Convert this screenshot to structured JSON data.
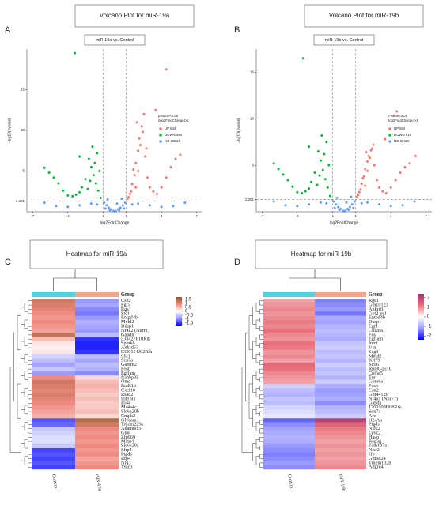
{
  "chart_data": [
    {
      "type": "volcano",
      "panel": "A",
      "title": "Volcano Plot for miR-19a",
      "subtitle": "miR-19a vs. Control",
      "x_label": "log2FoldChange",
      "y_label": "-log10(pvalue)",
      "xlim": [
        -7.5,
        7.5
      ],
      "ylim": [
        0,
        20
      ],
      "xticks": [
        -7,
        -4,
        -1,
        1,
        4,
        7
      ],
      "yticks": [
        1.301,
        5,
        10,
        15
      ],
      "vlines": [
        -1,
        1
      ],
      "hline": 1.301,
      "legend_title": [
        "p-value<0.05",
        "|log2FoldChange|>1"
      ],
      "series": [
        {
          "name": "UP",
          "count": 634,
          "color": "#f8766d",
          "x": [
            1.2,
            1.4,
            1.5,
            1.7,
            1.8,
            2.0,
            2.1,
            2.3,
            2.5,
            2.2,
            1.6,
            1.9,
            2.6,
            2.8,
            3.0,
            3.3,
            3.6,
            4.0,
            4.4,
            4.8,
            5.2,
            5.6,
            2.4,
            1.3,
            1.1,
            3.5,
            4.4,
            1.8,
            2.0,
            2.7
          ],
          "y": [
            1.8,
            2.5,
            3.4,
            4.5,
            6.0,
            7.5,
            9.0,
            10.5,
            12.0,
            8.2,
            5.2,
            11.0,
            6.8,
            4.2,
            3.0,
            2.5,
            2.2,
            3.0,
            4.2,
            5.5,
            6.5,
            7.0,
            9.8,
            2.2,
            1.6,
            12.5,
            17.5,
            3.0,
            5.0,
            7.8
          ]
        },
        {
          "name": "DOWN",
          "count": 493,
          "color": "#00ba38",
          "x": [
            -1.2,
            -1.4,
            -1.6,
            -1.8,
            -2.0,
            -2.2,
            -1.5,
            -1.9,
            -2.5,
            -2.8,
            -3.0,
            -3.3,
            -3.6,
            -4.0,
            -4.4,
            -4.8,
            -5.2,
            -5.6,
            -6.0,
            -1.3,
            -2.3,
            -3.4,
            -1.7,
            -2.1,
            -3.0
          ],
          "y": [
            1.7,
            2.6,
            3.5,
            4.5,
            5.5,
            6.5,
            7.2,
            8.0,
            4.0,
            3.0,
            2.4,
            2.1,
            1.9,
            2.0,
            2.6,
            3.5,
            4.2,
            4.8,
            5.4,
            5.0,
            2.8,
            19.5,
            6.0,
            3.8,
            6.8
          ]
        },
        {
          "name": "NO",
          "count": 20534,
          "color": "#619cff",
          "x": [
            -0.9,
            -0.7,
            -0.5,
            -0.3,
            -0.1,
            0.1,
            0.3,
            0.5,
            0.7,
            0.9,
            -0.8,
            -0.4,
            0,
            0.4,
            0.8,
            -2,
            -3,
            -4,
            -5,
            -6,
            2,
            3,
            4,
            5,
            6,
            -1.5,
            1.5,
            -0.6,
            0.6,
            0.2
          ],
          "y": [
            1.1,
            0.8,
            0.5,
            0.3,
            0.1,
            0.1,
            0.3,
            0.5,
            0.8,
            1.1,
            0.4,
            0.2,
            0.05,
            0.2,
            0.4,
            1.0,
            0.8,
            0.6,
            0.7,
            1.1,
            1.0,
            0.8,
            0.6,
            0.7,
            1.1,
            0.9,
            0.9,
            1.5,
            1.6,
            1.0
          ]
        }
      ]
    },
    {
      "type": "volcano",
      "panel": "B",
      "title": "Volcano Plot for miR-19b",
      "subtitle": "miR-19b vs. Control",
      "x_label": "log2FoldChange",
      "y_label": "-log10(pvalue)",
      "xlim": [
        -7.5,
        7.5
      ],
      "ylim": [
        0,
        17.5
      ],
      "xticks": [
        -7,
        -4,
        -1,
        1,
        4,
        7
      ],
      "yticks": [
        1.301,
        5,
        10,
        15
      ],
      "vlines": [
        -1,
        1
      ],
      "hline": 1.301,
      "legend_title": [
        "p-value<0.05",
        "|log2FoldChange|>1"
      ],
      "series": [
        {
          "name": "UP",
          "count": 562,
          "color": "#f8766d",
          "x": [
            1.2,
            1.4,
            1.5,
            1.7,
            1.8,
            2.0,
            2.1,
            2.3,
            2.5,
            2.2,
            1.6,
            1.9,
            2.6,
            2.8,
            3.0,
            3.3,
            3.6,
            4.0,
            4.4,
            4.8,
            5.2,
            5.6,
            2.4,
            1.3,
            1.1,
            3.5,
            4.5,
            1.8,
            2.0,
            6.1
          ],
          "y": [
            1.8,
            2.4,
            3.0,
            3.8,
            4.6,
            5.4,
            6.0,
            6.6,
            7.2,
            5.8,
            3.6,
            6.4,
            5.0,
            3.4,
            2.6,
            2.2,
            2.0,
            2.6,
            3.4,
            4.2,
            4.8,
            5.2,
            6.8,
            2.1,
            1.6,
            7.8,
            10.8,
            2.8,
            4.4,
            6.0
          ]
        },
        {
          "name": "DOWN",
          "count": 615,
          "color": "#00ba38",
          "x": [
            -1.2,
            -1.4,
            -1.6,
            -1.8,
            -2.0,
            -2.2,
            -1.5,
            -1.9,
            -2.5,
            -2.8,
            -3.0,
            -3.3,
            -3.6,
            -4.0,
            -4.4,
            -4.8,
            -5.2,
            -5.6,
            -6.0,
            -1.3,
            -2.3,
            -3.5,
            -1.7,
            -2.1,
            -3.0
          ],
          "y": [
            1.7,
            2.6,
            3.5,
            4.5,
            5.5,
            6.5,
            7.5,
            8.2,
            4.2,
            3.2,
            2.5,
            2.2,
            2.0,
            2.1,
            2.7,
            3.4,
            4.0,
            4.6,
            5.2,
            5.0,
            2.9,
            16.5,
            6.2,
            3.9,
            7.0
          ]
        },
        {
          "name": "NO",
          "count": 20426,
          "color": "#619cff",
          "x": [
            -0.9,
            -0.7,
            -0.5,
            -0.3,
            -0.1,
            0.1,
            0.3,
            0.5,
            0.7,
            0.9,
            -0.8,
            -0.4,
            0,
            0.4,
            0.8,
            -2,
            -3,
            -4,
            -5,
            -6,
            2,
            3,
            4,
            5,
            6,
            -1.5,
            1.5,
            -0.6,
            0.6,
            0.2
          ],
          "y": [
            1.1,
            0.8,
            0.5,
            0.3,
            0.1,
            0.1,
            0.3,
            0.5,
            0.8,
            1.1,
            0.4,
            0.2,
            0.05,
            0.2,
            0.4,
            1.0,
            0.8,
            0.6,
            0.7,
            1.1,
            1.0,
            0.8,
            0.6,
            0.7,
            1.1,
            0.9,
            0.9,
            1.5,
            1.6,
            1.0
          ]
        }
      ]
    },
    {
      "type": "heatmap",
      "panel": "C",
      "title": "Heatmap for miR-19a",
      "legend_title": "Group",
      "columns": [
        "Control",
        "miR-19a"
      ],
      "group_colors": [
        "#52d0de",
        "#f2a58a"
      ],
      "zlim": [
        -1.8,
        1.8
      ],
      "zticks": [
        1.5,
        1,
        0.5,
        0,
        -0.5,
        -1,
        -1.5
      ],
      "colors": [
        "#0000ff",
        "#9a9aff",
        "#ffffff",
        "#f08a80",
        "#8b5a2b"
      ],
      "rows": [
        "Csn2",
        "Fgf5",
        "Rgs1",
        "Stc1",
        "Entpd4b",
        "Mybl2",
        "Dusp1",
        "Nr4a2 (Nurr1)",
        "Gapdh",
        "533427F10Rik",
        "Spink8",
        "Ankrd63",
        "9330154J02Rik",
        "Slit1",
        "Scn7a",
        "Garem2",
        "Fosb",
        "Egflam",
        "Ranbp3l",
        "Omd",
        "Rad51b",
        "Cxcl10",
        "Rsad2",
        "Ifit1bl1",
        "Ifi44",
        "Ms4a4c",
        "Slc6a20b",
        "Cmpk2",
        "Glycam1",
        "Tmem229a",
        "Adamts15",
        "Gjb6",
        "Zfp969",
        "Matn4",
        "Slc6a20a",
        "Sfrp4",
        "Ptgds",
        "Rtp4",
        "Nrg3",
        "Tmc3"
      ],
      "values": [
        [
          1.2,
          -0.9
        ],
        [
          1.1,
          -0.8
        ],
        [
          1.0,
          -1.0
        ],
        [
          0.9,
          -1.1
        ],
        [
          0.8,
          -0.9
        ],
        [
          0.9,
          -0.7
        ],
        [
          0.8,
          -0.8
        ],
        [
          0.7,
          -0.9
        ],
        [
          1.3,
          -0.6
        ],
        [
          0.5,
          -1.5
        ],
        [
          0.2,
          -1.6
        ],
        [
          0.1,
          -1.6
        ],
        [
          0.2,
          -1.5
        ],
        [
          -0.4,
          -0.6
        ],
        [
          -0.6,
          -0.8
        ],
        [
          -0.8,
          -0.6
        ],
        [
          -0.5,
          -0.7
        ],
        [
          -0.9,
          -1.0
        ],
        [
          0.9,
          0.3
        ],
        [
          1.2,
          0.5
        ],
        [
          1.1,
          0.6
        ],
        [
          1.0,
          0.5
        ],
        [
          1.1,
          0.4
        ],
        [
          1.0,
          0.5
        ],
        [
          0.9,
          0.4
        ],
        [
          0.8,
          0.4
        ],
        [
          0.7,
          0.5
        ],
        [
          0.6,
          0.3
        ],
        [
          -1.3,
          1.4
        ],
        [
          -1.2,
          1.2
        ],
        [
          -0.5,
          0.9
        ],
        [
          -0.4,
          0.8
        ],
        [
          -0.3,
          0.9
        ],
        [
          -0.3,
          0.8
        ],
        [
          -0.5,
          0.9
        ],
        [
          -1.4,
          0.8
        ],
        [
          -1.3,
          0.9
        ],
        [
          -1.4,
          0.7
        ],
        [
          -1.3,
          0.8
        ],
        [
          -1.4,
          0.9
        ]
      ]
    },
    {
      "type": "heatmap",
      "panel": "D",
      "title": "Heatmap for miR-19b",
      "legend_title": "Group",
      "columns": [
        "Control",
        "miR-19b"
      ],
      "group_colors": [
        "#52d0de",
        "#f2a58a"
      ],
      "zlim": [
        -2.4,
        2.4
      ],
      "zticks": [
        2,
        1,
        0,
        -1,
        -2
      ],
      "colors": [
        "#0000ff",
        "#9a9aff",
        "#ffffff",
        "#e8707a",
        "#a0306f"
      ],
      "rows": [
        "Rgs1",
        "Gm10123",
        "Ankrd1",
        "Got2-ps1",
        "Entpd4b",
        "Dusp1",
        "Egr1",
        "Col28a1",
        "Fos",
        "Egflam",
        "Inmt",
        "Vtn",
        "Scg3",
        "Mmd2",
        "Krt79",
        "Stra6",
        "Rpl30-ps10",
        "Col6a5",
        "Tnr",
        "Gpm6a",
        "Fosb",
        "Csn2",
        "Gm44126",
        "Nr4a1 (Nur77)",
        "Gapdh",
        "1700109H08Rik",
        "Scn7a",
        "Arc",
        "H2-Aa",
        "Ptgds",
        "Ntrk2",
        "Ly6c2",
        "Haao",
        "Reg3g",
        "Fam107a",
        "Ntsr2",
        "Hp",
        "Gm9824",
        "Tmem132b",
        "Adgre4"
      ],
      "values": [
        [
          0.8,
          -1.4
        ],
        [
          0.9,
          -1.3
        ],
        [
          1.0,
          -1.2
        ],
        [
          0.9,
          -1.5
        ],
        [
          1.0,
          -1.0
        ],
        [
          1.1,
          -1.1
        ],
        [
          1.0,
          -0.9
        ],
        [
          1.2,
          -0.8
        ],
        [
          1.0,
          -0.9
        ],
        [
          0.9,
          -1.0
        ],
        [
          1.2,
          -0.7
        ],
        [
          1.1,
          -0.6
        ],
        [
          0.9,
          -0.8
        ],
        [
          1.0,
          -0.7
        ],
        [
          0.8,
          -0.9
        ],
        [
          1.3,
          -0.6
        ],
        [
          1.2,
          -0.8
        ],
        [
          1.0,
          -0.7
        ],
        [
          0.9,
          -0.9
        ],
        [
          0.8,
          -0.6
        ],
        [
          -0.6,
          -1.0
        ],
        [
          -0.8,
          -1.2
        ],
        [
          -0.9,
          -1.1
        ],
        [
          -0.7,
          -1.0
        ],
        [
          -0.8,
          -1.3
        ],
        [
          -0.5,
          -0.9
        ],
        [
          -0.4,
          -0.8
        ],
        [
          -0.3,
          -0.6
        ],
        [
          -1.6,
          2.0
        ],
        [
          -1.3,
          1.4
        ],
        [
          -1.1,
          1.1
        ],
        [
          -1.0,
          1.0
        ],
        [
          -0.9,
          0.9
        ],
        [
          -1.0,
          0.8
        ],
        [
          -1.2,
          0.9
        ],
        [
          -1.3,
          0.8
        ],
        [
          -1.4,
          0.9
        ],
        [
          -1.3,
          0.8
        ],
        [
          -1.2,
          0.9
        ],
        [
          -1.3,
          1.0
        ]
      ]
    }
  ]
}
